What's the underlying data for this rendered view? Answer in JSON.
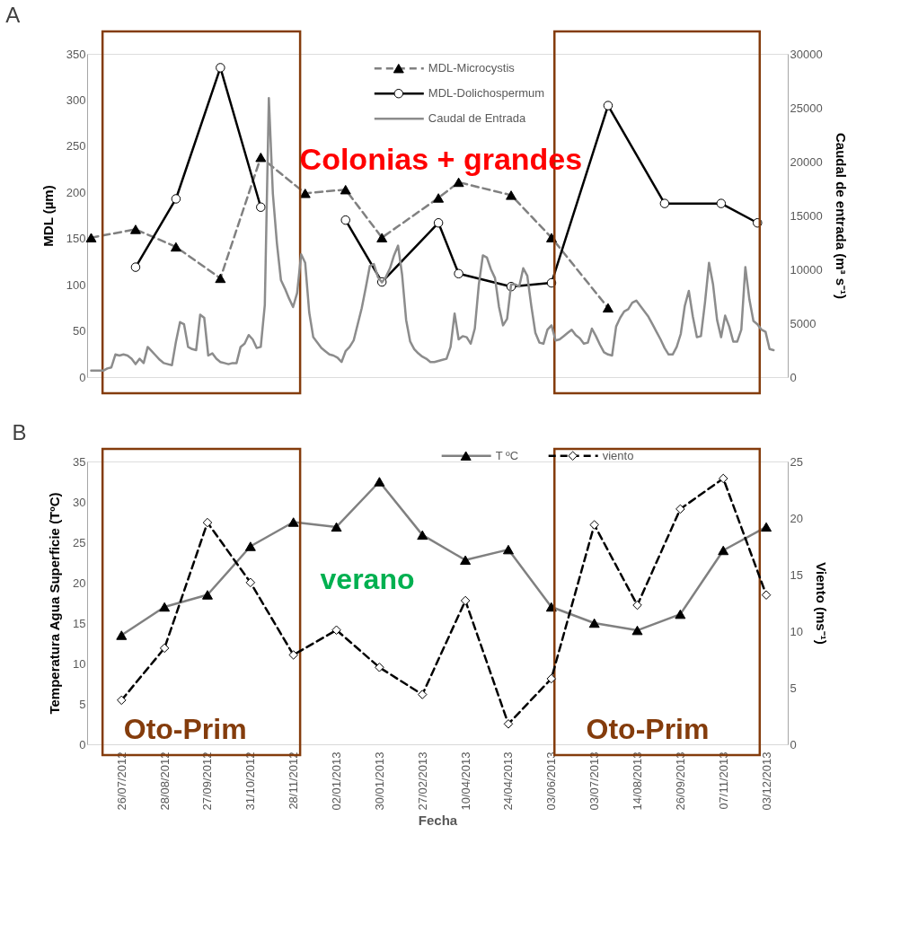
{
  "chart_data": [
    {
      "type": "line",
      "title": "A",
      "ylabel": "MDL (µm)",
      "y2label": "Caudal de entrada (m³ s⁻¹)",
      "annotations": [
        "Colonias + grandes"
      ],
      "categories": [
        null,
        null,
        null,
        null,
        null,
        null,
        null,
        null,
        null,
        null,
        null,
        null,
        null,
        null,
        null,
        null,
        null,
        null,
        null,
        null,
        null,
        null,
        null,
        null,
        null,
        null,
        null,
        null,
        null,
        null,
        null,
        null,
        null,
        null,
        null,
        null,
        null,
        null,
        null,
        null,
        null,
        null,
        null,
        null,
        null,
        null,
        null,
        null,
        null,
        null,
        null,
        null,
        null,
        null,
        null,
        null,
        null,
        null,
        null,
        null,
        null,
        null,
        null,
        null,
        null,
        null,
        null,
        null,
        null,
        null,
        null,
        null,
        null,
        null,
        null,
        null,
        null,
        null,
        null,
        null,
        null,
        null,
        null,
        null,
        null,
        null,
        null,
        null,
        null,
        null,
        null,
        null,
        null,
        null,
        null,
        null,
        null,
        null,
        null,
        null,
        null,
        null,
        null,
        null,
        null,
        null,
        null,
        null,
        null,
        null,
        null,
        null,
        null,
        null,
        null,
        null,
        null,
        null,
        null,
        null,
        null,
        null,
        null,
        null,
        null,
        null,
        null,
        null,
        null,
        null,
        null,
        null,
        null,
        null,
        null,
        null,
        null,
        null,
        null,
        null,
        null,
        null,
        null,
        null,
        null,
        null,
        null,
        null,
        null,
        null,
        null,
        null,
        null,
        null,
        null,
        null,
        null,
        null,
        null,
        null,
        null,
        null,
        null,
        null,
        null,
        null,
        null,
        null,
        null,
        null
      ],
      "tick_labels": "y",
      "ylim": [
        0,
        350
      ],
      "yticks": [
        0,
        50,
        100,
        150,
        200,
        250,
        300,
        350
      ],
      "y2lim": [
        0,
        30000
      ],
      "y2ticks": [
        0,
        5000,
        10000,
        15000,
        20000,
        25000,
        30000
      ],
      "grid": false,
      "legend": "top",
      "series": [
        {
          "name": "MDL-Microcystis",
          "color": "#808080",
          "line_style": "dashed",
          "marker": "triangle",
          "values": [
            151,
            null,
            null,
            null,
            null,
            null,
            null,
            null,
            null,
            null,
            null,
            160,
            null,
            null,
            null,
            null,
            null,
            null,
            null,
            null,
            null,
            141,
            null,
            null,
            null,
            null,
            null,
            null,
            null,
            null,
            null,
            null,
            107,
            null,
            null,
            null,
            null,
            null,
            null,
            null,
            null,
            null,
            238,
            null,
            null,
            null,
            null,
            null,
            null,
            null,
            null,
            null,
            null,
            199,
            null,
            null,
            null,
            null,
            null,
            null,
            null,
            null,
            null,
            203,
            null,
            null,
            null,
            null,
            null,
            null,
            null,
            null,
            151,
            null,
            null,
            null,
            null,
            null,
            null,
            null,
            null,
            null,
            null,
            null,
            null,
            null,
            194,
            null,
            null,
            null,
            null,
            211,
            null,
            null,
            null,
            null,
            null,
            null,
            null,
            null,
            null,
            null,
            null,
            null,
            197,
            null,
            null,
            null,
            null,
            null,
            null,
            null,
            null,
            null,
            151,
            null,
            null,
            null,
            null,
            null,
            null,
            null,
            null,
            null,
            null,
            null,
            null,
            null,
            75,
            null,
            null,
            null,
            null,
            null,
            null,
            null,
            null,
            null,
            null,
            null,
            null,
            null,
            null,
            null,
            null,
            null,
            null,
            null,
            null,
            null,
            null,
            null,
            null,
            null,
            null,
            null,
            null,
            null,
            null,
            null,
            null,
            null,
            null,
            null,
            null,
            null,
            null,
            null,
            null,
            null
          ]
        },
        {
          "name": "MDL-Dolichospermum",
          "color": "#000000",
          "line_style": "solid",
          "marker": "circle",
          "values": [
            null,
            null,
            null,
            null,
            null,
            null,
            null,
            null,
            null,
            null,
            null,
            119,
            null,
            null,
            null,
            null,
            null,
            null,
            null,
            null,
            null,
            193,
            null,
            null,
            null,
            null,
            null,
            null,
            null,
            null,
            null,
            null,
            335,
            null,
            null,
            null,
            null,
            null,
            null,
            null,
            null,
            null,
            184,
            null,
            null,
            null,
            null,
            null,
            null,
            null,
            null,
            null,
            null,
            null,
            null,
            null,
            null,
            null,
            null,
            null,
            null,
            null,
            null,
            null,
            null,
            null,
            null,
            null,
            null,
            null,
            null,
            null,
            null,
            null,
            null,
            null,
            null,
            null,
            null,
            null,
            null,
            null,
            null,
            null,
            null,
            null,
            null,
            null,
            null,
            null,
            null,
            null,
            null,
            null,
            null,
            null,
            null,
            null,
            null,
            null,
            null,
            null,
            null,
            null,
            null,
            null,
            null,
            null,
            null,
            null,
            null,
            null,
            null,
            null,
            null,
            null,
            null,
            null,
            null,
            null,
            null,
            null,
            null,
            null,
            null,
            null,
            null,
            null,
            null,
            null,
            null,
            null,
            null,
            null,
            null,
            null,
            null,
            null,
            null,
            null,
            null,
            null,
            null,
            null,
            null,
            null,
            null,
            null,
            null,
            null,
            null,
            null,
            null,
            null,
            null,
            null,
            null,
            null,
            null,
            null,
            null,
            null,
            null,
            null,
            null,
            null,
            null,
            null,
            null,
            null
          ]
        },
        {
          "color": "#000000",
          "line_style": "solid",
          "marker": "circle",
          "values": [
            null,
            null,
            null,
            null,
            null,
            null,
            null,
            null,
            null,
            null,
            null,
            null,
            null,
            null,
            null,
            null,
            null,
            null,
            null,
            null,
            null,
            null,
            null,
            null,
            null,
            null,
            null,
            null,
            null,
            null,
            null,
            null,
            null,
            null,
            null,
            null,
            null,
            null,
            null,
            null,
            null,
            null,
            null,
            null,
            null,
            null,
            null,
            null,
            null,
            null,
            null,
            null,
            null,
            null,
            null,
            null,
            null,
            null,
            null,
            null,
            null,
            null,
            null,
            170,
            null,
            null,
            null,
            null,
            null,
            null,
            null,
            null,
            103,
            null,
            null,
            null,
            null,
            null,
            null,
            null,
            null,
            null,
            null,
            null,
            null,
            null,
            167,
            null,
            null,
            null,
            null,
            112,
            null,
            null,
            null,
            null,
            null,
            null,
            null,
            null,
            null,
            null,
            null,
            null,
            98,
            null,
            null,
            null,
            null,
            null,
            null,
            null,
            null,
            null,
            102,
            null,
            null,
            null,
            null,
            null,
            null,
            null,
            null,
            null,
            null,
            null,
            null,
            null,
            294,
            null,
            null,
            null,
            null,
            null,
            null,
            null,
            null,
            null,
            null,
            null,
            null,
            null,
            188,
            null,
            null,
            null,
            null,
            null,
            null,
            null,
            null,
            null,
            null,
            null,
            null,
            null,
            188,
            null,
            null,
            null,
            null,
            null,
            null,
            null,
            null,
            167,
            null,
            null,
            null,
            null
          ]
        },
        {
          "name": "Caudal de Entrada",
          "color": "#8c8c8c",
          "line_style": "solid",
          "marker": "none",
          "axis": "y2",
          "values": [
            600,
            600,
            600,
            600,
            800,
            900,
            2100,
            2000,
            2100,
            2000,
            1700,
            1200,
            1700,
            1300,
            2800,
            2400,
            2000,
            1600,
            1300,
            1200,
            1100,
            3300,
            5100,
            4900,
            2800,
            2600,
            2500,
            5800,
            5500,
            2000,
            2200,
            1700,
            1400,
            1300,
            1200,
            1300,
            1300,
            2800,
            3100,
            3900,
            3500,
            2700,
            2800,
            6700,
            25900,
            17000,
            12400,
            9000,
            8200,
            7300,
            6500,
            7800,
            11400,
            10600,
            6000,
            3700,
            3200,
            2700,
            2400,
            2100,
            2000,
            1800,
            1400,
            2400,
            2800,
            3400,
            4900,
            6400,
            8300,
            10300,
            10500,
            9300,
            8800,
            9300,
            10100,
            11300,
            12200,
            9500,
            5300,
            3300,
            2600,
            2200,
            1900,
            1700,
            1400,
            1400,
            1500,
            1600,
            1700,
            2800,
            5900,
            3500,
            3800,
            3700,
            3100,
            4500,
            8600,
            11300,
            11100,
            10000,
            9200,
            6500,
            4800,
            5400,
            8600,
            8600,
            8400,
            10100,
            9400,
            6600,
            4100,
            3200,
            3100,
            4400,
            4800,
            3400,
            3500,
            3800,
            4100,
            4400,
            3900,
            3600,
            3100,
            3200,
            4500,
            3800,
            3000,
            2300,
            2100,
            2000,
            4700,
            5500,
            6100,
            6300,
            6900,
            7100,
            6600,
            6100,
            5600,
            4900,
            4200,
            3500,
            2700,
            2100,
            2100,
            2800,
            4000,
            6600,
            8000,
            5600,
            3700,
            3800,
            6900,
            10600,
            8600,
            5300,
            3700,
            5700,
            4700,
            3300,
            3300,
            4400,
            10200,
            7200,
            5200,
            4900,
            4400,
            4200,
            2600,
            2500
          ]
        }
      ]
    },
    {
      "type": "line",
      "title": "B",
      "xlabel": "Fecha",
      "ylabel": "Temperatura Agua Superficie (TºC)",
      "y2label": "Viento (ms⁻¹)",
      "annotations": [
        "verano",
        "Oto-Prim",
        "Oto-Prim"
      ],
      "categories": [
        "26/07/2012",
        "28/08/2012",
        "27/09/2012",
        "31/10/2012",
        "28/11/2012",
        "02/01/2013",
        "30/01/2013",
        "27/02/2013",
        "10/04/2013",
        "24/04/2013",
        "03/06/2013",
        "03/07/2013",
        "14/08/2013",
        "26/09/2013",
        "07/11/2013",
        "03/12/2013"
      ],
      "ylim": [
        0,
        35
      ],
      "yticks": [
        0,
        5,
        10,
        15,
        20,
        25,
        30,
        35
      ],
      "y2lim": [
        0,
        25
      ],
      "y2ticks": [
        0,
        5,
        10,
        15,
        20,
        25
      ],
      "grid": false,
      "legend": "top",
      "series": [
        {
          "name": "T ºC",
          "color": "#808080",
          "line_style": "solid",
          "marker": "triangle",
          "values": [
            13.5,
            17.0,
            18.5,
            24.5,
            27.5,
            26.9,
            32.5,
            25.9,
            22.8,
            24.1,
            17.0,
            15.0,
            14.1,
            16.1,
            24.0,
            26.9
          ]
        },
        {
          "name": "viento",
          "color": "#000000",
          "line_style": "dashed",
          "marker": "diamond",
          "axis": "y2",
          "values": [
            3.9,
            8.5,
            19.6,
            14.3,
            7.9,
            10.1,
            6.8,
            4.4,
            12.7,
            1.8,
            5.8,
            19.4,
            12.3,
            20.8,
            23.5,
            13.2
          ]
        }
      ]
    }
  ]
}
